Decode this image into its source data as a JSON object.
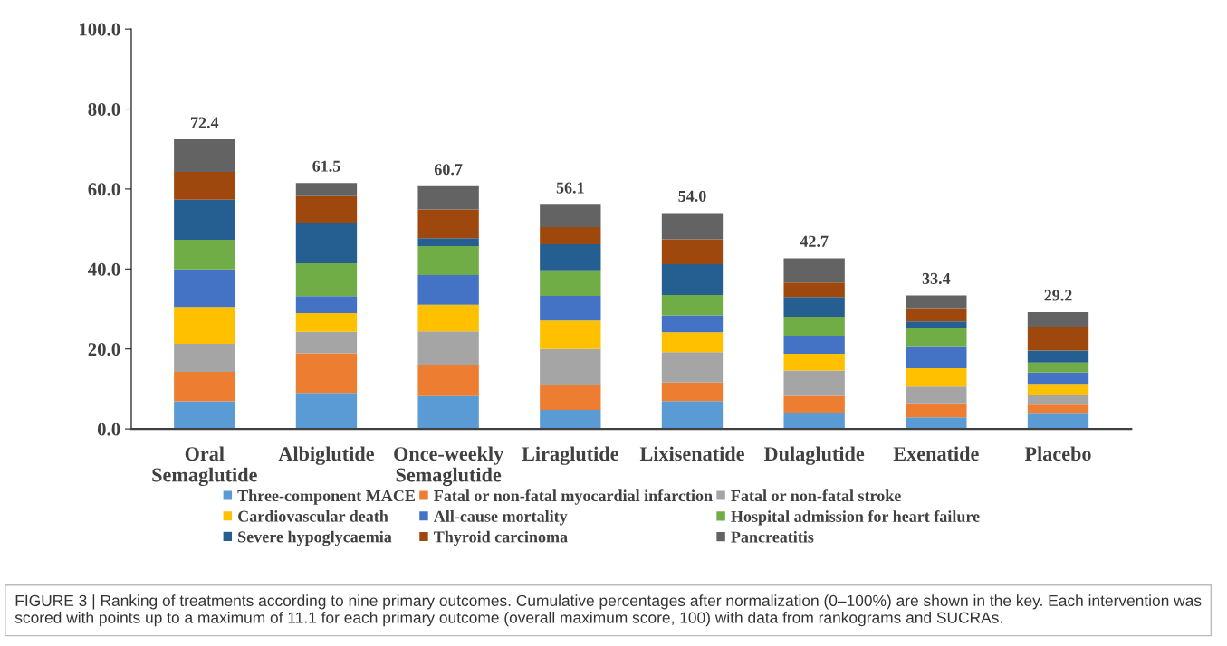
{
  "chart_data": {
    "type": "bar",
    "stacked": true,
    "categories": [
      "Oral\nSemaglutide",
      "Albiglutide",
      "Once-weekly\nSemaglutide",
      "Liraglutide",
      "Lixisenatide",
      "Dulaglutide",
      "Exenatide",
      "Placebo"
    ],
    "series": [
      {
        "name": "Three-component MACE",
        "color": "#5b9bd5",
        "values": [
          6.9,
          9.0,
          8.2,
          4.8,
          7.0,
          4.1,
          2.9,
          3.8
        ]
      },
      {
        "name": "Fatal or non-fatal myocardial infarction",
        "color": "#ed7d31",
        "values": [
          7.4,
          9.9,
          7.9,
          6.2,
          4.6,
          4.2,
          3.5,
          2.3
        ]
      },
      {
        "name": "Fatal or non-fatal stroke",
        "color": "#a5a5a5",
        "values": [
          7.0,
          5.4,
          8.3,
          9.0,
          7.6,
          6.3,
          4.2,
          2.3
        ]
      },
      {
        "name": "Cardiovascular death",
        "color": "#ffc000",
        "values": [
          9.2,
          4.7,
          6.7,
          7.1,
          5.0,
          4.2,
          4.6,
          2.9
        ]
      },
      {
        "name": "All-cause mortality",
        "color": "#4472c4",
        "values": [
          9.4,
          4.2,
          7.4,
          6.2,
          4.2,
          4.5,
          5.5,
          2.8
        ]
      },
      {
        "name": "Hospital admission for heart failure",
        "color": "#70ad47",
        "values": [
          7.4,
          8.2,
          7.2,
          6.4,
          5.1,
          4.8,
          4.6,
          2.5
        ]
      },
      {
        "name": "Severe hypoglycaemia",
        "color": "#255e91",
        "values": [
          10.0,
          10.1,
          2.0,
          6.5,
          7.7,
          4.9,
          1.6,
          3.0
        ]
      },
      {
        "name": "Thyroid carcinoma",
        "color": "#9e480e",
        "values": [
          7.0,
          6.7,
          7.2,
          4.3,
          6.2,
          3.6,
          3.3,
          6.0
        ]
      },
      {
        "name": "Pancreatitis",
        "color": "#636363",
        "values": [
          8.1,
          3.3,
          5.8,
          5.6,
          6.6,
          6.1,
          3.2,
          3.6
        ]
      }
    ],
    "totals": [
      "72.4",
      "61.5",
      "60.7",
      "56.1",
      "54.0",
      "42.7",
      "33.4",
      "29.2"
    ],
    "ylim": [
      0,
      100
    ],
    "yticks": [
      {
        "value": 0,
        "label": "0.0"
      },
      {
        "value": 20,
        "label": "20.0"
      },
      {
        "value": 40,
        "label": "40.0"
      },
      {
        "value": 60,
        "label": "60.0"
      },
      {
        "value": 80,
        "label": "80.0"
      },
      {
        "value": 100,
        "label": "100.0"
      }
    ],
    "grid": false,
    "legend": "bottom",
    "annotations": [
      "FIGURE 3 | Ranking of treatments according to nine primary outcomes. Cumulative percentages after normalization (0–100%) are shown in the key. Each intervention was scored with points up to a maximum of 11.1 for each primary outcome (overall maximum score, 100) with data from rankograms and SUCRAs."
    ]
  }
}
